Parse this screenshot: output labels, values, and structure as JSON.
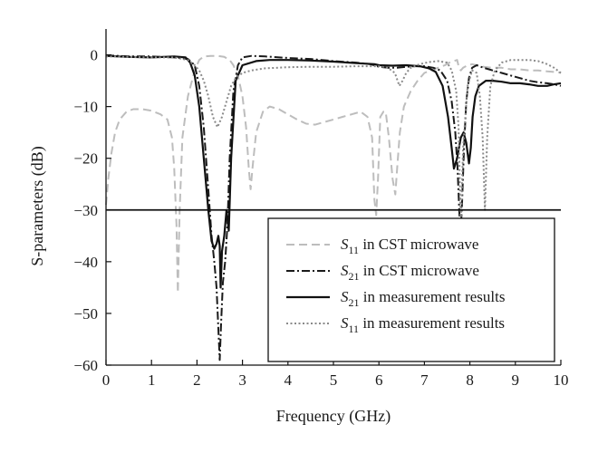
{
  "chart_data": {
    "type": "line",
    "xlabel": "Frequency (GHz)",
    "ylabel": "S-parameters (dB)",
    "xlim": [
      0,
      10
    ],
    "ylim": [
      -60,
      5
    ],
    "xticks": [
      0,
      1,
      2,
      3,
      4,
      5,
      6,
      7,
      8,
      9,
      10
    ],
    "yticks": [
      0,
      -10,
      -20,
      -30,
      -40,
      -50,
      -60
    ],
    "grid": false,
    "legend_position": "bottom-right",
    "reference_line": {
      "y": -30,
      "x_range": [
        0,
        10
      ]
    },
    "series": [
      {
        "name": "S11 in CST microwave",
        "legend_main": "S",
        "legend_sub": "11",
        "legend_rest": " in CST microwave",
        "color": "#bdbdbd",
        "style": "dashed",
        "x": [
          0.0,
          0.05,
          0.12,
          0.2,
          0.3,
          0.45,
          0.6,
          0.8,
          1.0,
          1.2,
          1.35,
          1.45,
          1.5,
          1.55,
          1.58,
          1.62,
          1.68,
          1.8,
          1.95,
          2.05,
          2.15,
          2.3,
          2.45,
          2.6,
          2.72,
          2.8,
          2.9,
          3.0,
          3.08,
          3.14,
          3.18,
          3.22,
          3.3,
          3.45,
          3.6,
          3.8,
          4.0,
          4.2,
          4.4,
          4.6,
          4.8,
          5.0,
          5.2,
          5.4,
          5.6,
          5.75,
          5.85,
          5.9,
          5.94,
          5.98,
          6.03,
          6.1,
          6.15,
          6.22,
          6.3,
          6.36,
          6.4,
          6.46,
          6.55,
          6.7,
          6.85,
          7.0,
          7.15,
          7.3,
          7.45,
          7.55,
          7.65,
          7.72,
          7.76,
          7.8,
          7.85,
          7.95,
          8.05,
          8.15,
          8.3,
          8.5,
          8.7,
          8.9,
          9.1,
          9.3,
          9.5,
          9.7,
          9.85,
          9.95,
          10.0
        ],
        "y": [
          -29,
          -24,
          -19,
          -15,
          -12.5,
          -11,
          -10.5,
          -10.5,
          -10.8,
          -11.5,
          -12.5,
          -16,
          -22,
          -33,
          -46,
          -30,
          -16,
          -8,
          -3,
          -1,
          -0.3,
          -0.2,
          -0.2,
          -0.4,
          -1,
          -2,
          -4,
          -8,
          -14,
          -22,
          -26,
          -22,
          -15,
          -11,
          -10,
          -10.5,
          -11.5,
          -12.5,
          -13.3,
          -13.5,
          -13,
          -12.5,
          -12,
          -11.5,
          -11,
          -12,
          -16,
          -28,
          -31,
          -24,
          -12,
          -11,
          -11,
          -16,
          -24,
          -27,
          -22,
          -15,
          -10,
          -7,
          -5,
          -3.5,
          -3,
          -2.5,
          -2,
          -1.5,
          -1.2,
          -1,
          -2.5,
          -3,
          -2.5,
          -2,
          -1.8,
          -2,
          -2.3,
          -2.5,
          -2.5,
          -2.8,
          -2.8,
          -3,
          -3,
          -3.2,
          -3.3,
          -3.4,
          -3.5
        ]
      },
      {
        "name": "S21 in CST microwave",
        "legend_main": "S",
        "legend_sub": "21",
        "legend_rest": " in CST microwave",
        "color": "#1a1a1a",
        "style": "dashdot",
        "x": [
          0.0,
          0.5,
          1.0,
          1.5,
          1.8,
          1.95,
          2.05,
          2.15,
          2.25,
          2.32,
          2.38,
          2.43,
          2.47,
          2.5,
          2.53,
          2.57,
          2.62,
          2.67,
          2.72,
          2.8,
          2.9,
          3.0,
          3.2,
          3.5,
          4.0,
          4.5,
          5.0,
          5.5,
          5.8,
          5.9,
          6.0,
          6.2,
          6.4,
          6.6,
          6.8,
          7.0,
          7.2,
          7.35,
          7.5,
          7.6,
          7.68,
          7.73,
          7.77,
          7.8,
          7.83,
          7.87,
          7.92,
          7.98,
          8.05,
          8.15,
          8.3,
          8.5,
          8.7,
          8.9,
          9.1,
          9.3,
          9.5,
          9.7,
          9.85,
          10.0
        ],
        "y": [
          -0.1,
          -0.3,
          -0.3,
          -0.5,
          -0.8,
          -2,
          -6,
          -14,
          -26,
          -35,
          -40,
          -45,
          -53,
          -59,
          -52,
          -44,
          -40,
          -33,
          -20,
          -7,
          -2,
          -0.5,
          -0.2,
          -0.3,
          -0.6,
          -0.8,
          -1.2,
          -1.5,
          -1.8,
          -2,
          -2.3,
          -2.5,
          -2.5,
          -2.3,
          -2.2,
          -2.2,
          -2.5,
          -3,
          -5,
          -9,
          -15,
          -22,
          -31,
          -34,
          -28,
          -18,
          -9,
          -4.5,
          -2.5,
          -2,
          -2.5,
          -3,
          -3.5,
          -4,
          -4.5,
          -5,
          -5.3,
          -5.5,
          -5.7,
          -6
        ]
      },
      {
        "name": "S21 in measurement results",
        "legend_main": "S",
        "legend_sub": "21",
        "legend_rest": " in measurement results",
        "color": "#111111",
        "style": "solid",
        "x": [
          0.0,
          0.5,
          1.0,
          1.5,
          1.75,
          1.85,
          1.95,
          2.05,
          2.15,
          2.25,
          2.32,
          2.38,
          2.43,
          2.47,
          2.5,
          2.52,
          2.55,
          2.6,
          2.65,
          2.7,
          2.75,
          2.85,
          3.0,
          3.3,
          3.6,
          4.0,
          4.5,
          5.0,
          5.5,
          5.9,
          6.0,
          6.3,
          6.6,
          6.9,
          7.1,
          7.25,
          7.4,
          7.52,
          7.6,
          7.65,
          7.72,
          7.8,
          7.86,
          7.92,
          7.98,
          8.02,
          8.06,
          8.12,
          8.2,
          8.35,
          8.5,
          8.7,
          8.9,
          9.1,
          9.3,
          9.5,
          9.7,
          9.85,
          10.0
        ],
        "y": [
          -0.2,
          -0.4,
          -0.5,
          -0.3,
          -0.5,
          -1.5,
          -4,
          -10,
          -20,
          -30,
          -36,
          -37.5,
          -36.5,
          -35,
          -37,
          -45,
          -38,
          -35,
          -30,
          -34,
          -20,
          -5,
          -2,
          -1.2,
          -1,
          -1,
          -1.1,
          -1.3,
          -1.6,
          -1.8,
          -2,
          -2.1,
          -2,
          -2.2,
          -2.6,
          -3.3,
          -6,
          -12,
          -18,
          -22,
          -20,
          -16,
          -15,
          -17,
          -21,
          -18,
          -12,
          -8,
          -6,
          -5,
          -5,
          -5.2,
          -5.5,
          -5.5,
          -5.7,
          -6,
          -6,
          -5.7,
          -5.5
        ]
      },
      {
        "name": "S11 in measurement results",
        "legend_main": "S",
        "legend_sub": "11",
        "legend_rest": " in measurement results",
        "color": "#8a8a8a",
        "style": "dotted",
        "x": [
          0.0,
          0.5,
          1.0,
          1.5,
          1.8,
          1.95,
          2.05,
          2.15,
          2.25,
          2.35,
          2.45,
          2.55,
          2.65,
          2.75,
          2.85,
          3.0,
          3.2,
          3.5,
          4.0,
          4.5,
          5.0,
          5.5,
          6.0,
          6.2,
          6.35,
          6.45,
          6.52,
          6.6,
          6.7,
          6.9,
          7.1,
          7.3,
          7.5,
          7.6,
          7.7,
          7.75,
          7.8,
          7.85,
          7.95,
          8.05,
          8.15,
          8.22,
          8.28,
          8.33,
          8.38,
          8.45,
          8.55,
          8.7,
          8.9,
          9.1,
          9.3,
          9.5,
          9.7,
          9.85,
          10.0
        ],
        "y": [
          -0.3,
          -0.4,
          -0.5,
          -0.5,
          -1,
          -2,
          -3,
          -5,
          -8,
          -12,
          -14,
          -12,
          -9,
          -6,
          -4.5,
          -3.5,
          -3,
          -2.6,
          -2.4,
          -2.3,
          -2.3,
          -2.2,
          -2.2,
          -2.5,
          -3.5,
          -6,
          -5,
          -3.5,
          -2.5,
          -1.8,
          -1.4,
          -1.2,
          -1.5,
          -3,
          -7,
          -14,
          -33,
          -18,
          -6,
          -3,
          -3.5,
          -8,
          -16,
          -30,
          -16,
          -6,
          -3,
          -1.5,
          -1,
          -1,
          -1,
          -1.2,
          -1.8,
          -2.5,
          -3.5
        ]
      }
    ]
  }
}
